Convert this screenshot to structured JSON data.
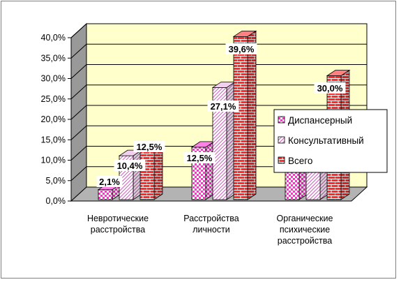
{
  "chart_data": {
    "type": "bar",
    "categories": [
      [
        "Невротические",
        "расстройства"
      ],
      [
        "Расстройства",
        "личности"
      ],
      [
        "Органические",
        "психические",
        "расстройства"
      ]
    ],
    "series": [
      {
        "name": "Диспансерный",
        "values": [
          2.1,
          12.5,
          10.0
        ],
        "labels": [
          "2,1%",
          "12,5%",
          "10,0%"
        ]
      },
      {
        "name": "Консультативный",
        "values": [
          10.4,
          27.1,
          20.0
        ],
        "labels": [
          "10,4%",
          "27,1%",
          ""
        ]
      },
      {
        "name": "Всего",
        "values": [
          12.5,
          39.6,
          30.0
        ],
        "labels": [
          "12,5%",
          "39,6%",
          "30,0%"
        ]
      }
    ],
    "ylim": [
      0,
      40
    ],
    "yticks": [
      "0,0%",
      "5,0%",
      "10,0%",
      "15,0%",
      "20,0%",
      "25,0%",
      "30,0%",
      "35,0%",
      "40,0%"
    ],
    "grid": true,
    "legend_position": "right",
    "colors": {
      "wall": "#ffffcc",
      "floor": "#b3b3b3",
      "disp": "#ff33cc",
      "cons": "#e7b0e0",
      "total": "#ff3333"
    }
  }
}
